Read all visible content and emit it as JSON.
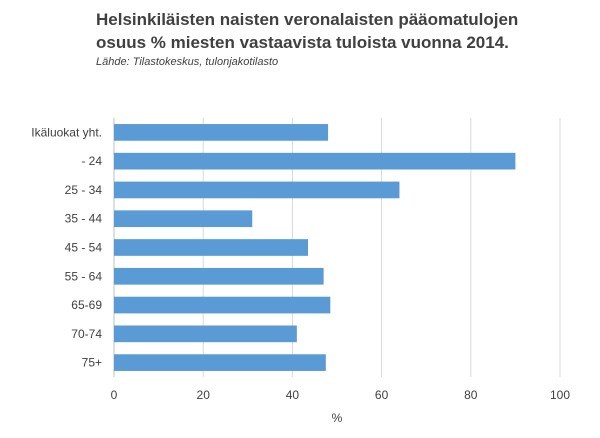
{
  "title": "Helsinkiläisten naisten veronalaisten pääomatulojen\nosuus % miesten vastaavista tuloista vuonna 2014.",
  "subtitle": "Lähde: Tilastokeskus, tulonjakotilasto",
  "colors": {
    "bar": "#5B9BD5",
    "grid": "#D9D9D9",
    "axis": "#BFBFBF",
    "text": "#404040"
  },
  "chart_data": {
    "type": "bar",
    "orientation": "horizontal",
    "categories": [
      "Ikäluokat yht.",
      "- 24",
      "25 - 34",
      "35 - 44",
      "45 - 54",
      "55 - 64",
      "65-69",
      "70-74",
      "75+"
    ],
    "values": [
      48,
      90,
      64,
      31,
      43.5,
      47,
      48.5,
      41,
      47.5
    ],
    "xlabel": "%",
    "ylabel": "",
    "xlim": [
      0,
      100
    ],
    "xticks": [
      0,
      20,
      40,
      60,
      80,
      100
    ],
    "grid": true
  }
}
